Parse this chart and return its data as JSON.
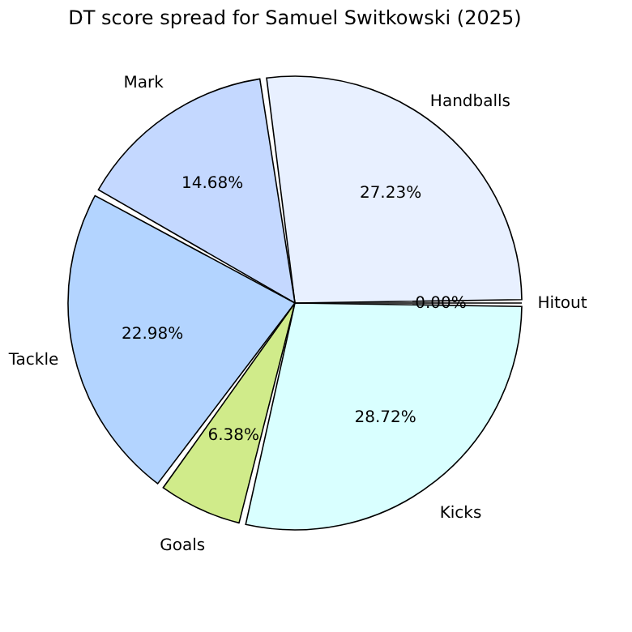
{
  "chart_data": {
    "type": "pie",
    "title": "DT score spread for Samuel Switkowski (2025)",
    "categories": [
      "Hitout",
      "Handballs",
      "Mark",
      "Tackle",
      "Goals",
      "Kicks"
    ],
    "values": [
      0.0,
      27.23,
      14.68,
      22.98,
      6.38,
      28.72
    ],
    "value_labels": [
      "0.00%",
      "27.23%",
      "14.68%",
      "22.98%",
      "6.38%",
      "28.72%"
    ],
    "colors": [
      "#ffe4e4",
      "#e8f0ff",
      "#c4d8ff",
      "#b3d4ff",
      "#d0eb8a",
      "#d9ffff"
    ],
    "legend": false
  }
}
